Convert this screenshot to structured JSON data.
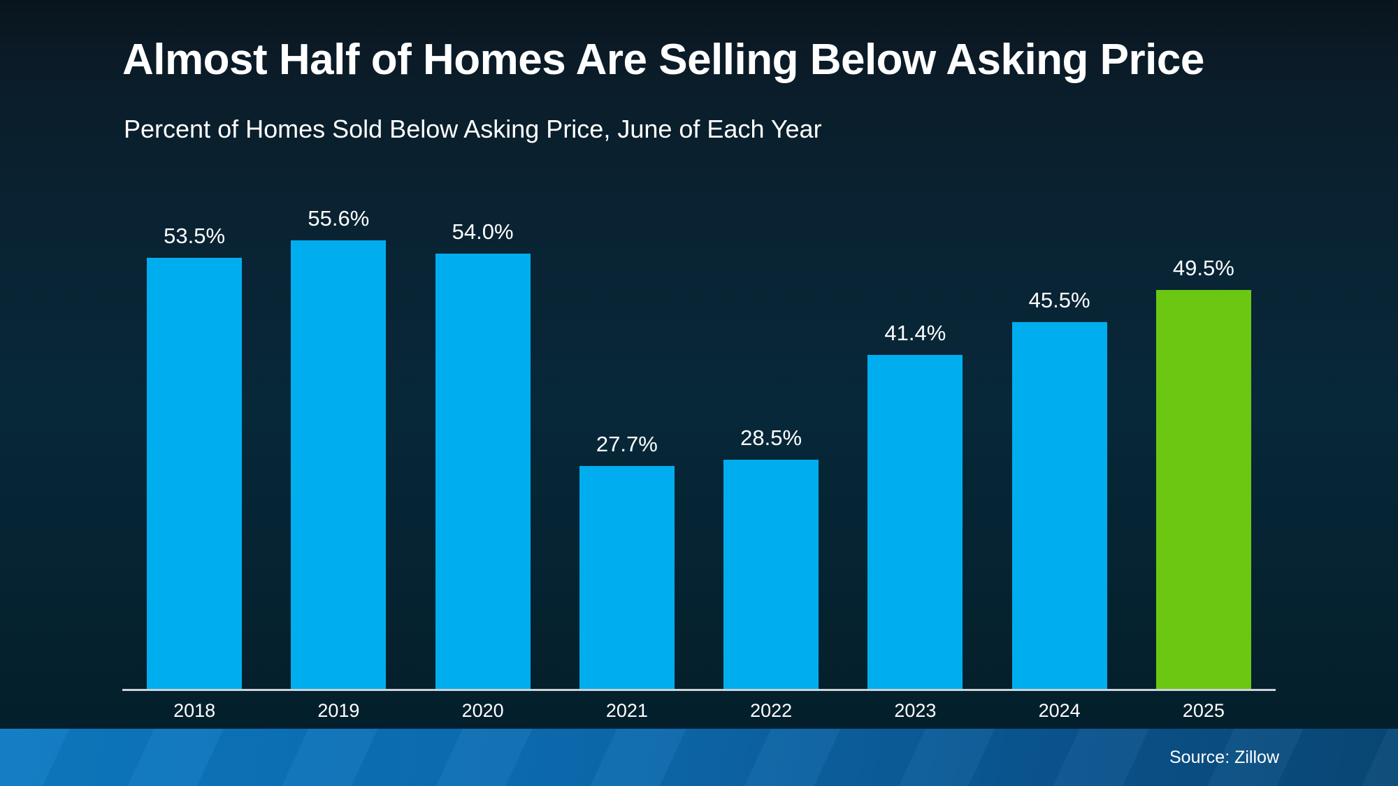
{
  "chart_data": {
    "type": "bar",
    "title": "Almost Half of Homes Are Selling Below Asking Price",
    "subtitle": "Percent of Homes Sold Below Asking Price, June of Each Year",
    "categories": [
      "2018",
      "2019",
      "2020",
      "2021",
      "2022",
      "2023",
      "2024",
      "2025"
    ],
    "values": [
      53.5,
      55.6,
      54.0,
      27.7,
      28.5,
      41.4,
      45.5,
      49.5
    ],
    "data_labels": [
      "53.5%",
      "55.6%",
      "54.0%",
      "27.7%",
      "28.5%",
      "41.4%",
      "45.5%",
      "49.5%"
    ],
    "unit": "percent",
    "highlight_index": 7,
    "ylim": [
      0,
      60
    ],
    "grid": false,
    "legend": "none",
    "colors": {
      "bar_default": "#00aeef",
      "bar_highlight": "#6bc711",
      "label_text": "#ffffff",
      "axis_line": "#cdd3d8",
      "background_dark": "#072839",
      "footer_left": "#0d7ac2",
      "footer_right": "#094876"
    }
  },
  "footer": {
    "source": "Source: Zillow"
  }
}
